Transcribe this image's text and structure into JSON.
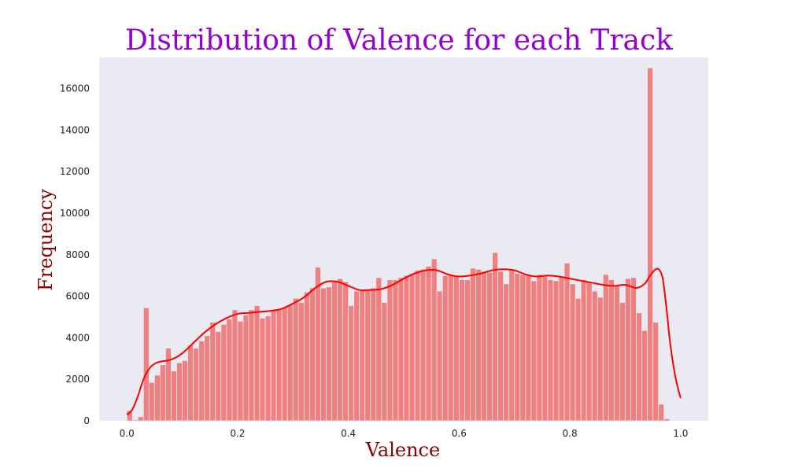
{
  "chart_data": {
    "type": "bar",
    "title": "Distribution of Valence for each Track",
    "xlabel": "Valence",
    "ylabel": "Frequency",
    "xlim": [
      -0.05,
      1.05
    ],
    "ylim": [
      0,
      17500
    ],
    "x_ticks": [
      "0.0",
      "0.2",
      "0.4",
      "0.6",
      "0.8",
      "1.0"
    ],
    "y_ticks": [
      "0",
      "2000",
      "4000",
      "6000",
      "8000",
      "10000",
      "12000",
      "14000",
      "16000"
    ],
    "grid": false,
    "bins": {
      "start": 0.0,
      "end": 1.0,
      "count": 100
    },
    "values": [
      500,
      50,
      200,
      5450,
      1850,
      2200,
      2700,
      3500,
      2400,
      2800,
      2900,
      3650,
      3500,
      3850,
      4100,
      4750,
      4300,
      4650,
      4900,
      5350,
      4800,
      5100,
      5350,
      5550,
      4950,
      5050,
      5300,
      5350,
      5450,
      5600,
      5900,
      5700,
      6200,
      6400,
      7400,
      6400,
      6450,
      6700,
      6850,
      6700,
      5550,
      6250,
      6300,
      6350,
      6400,
      6900,
      5700,
      6800,
      6800,
      6900,
      7000,
      7100,
      7250,
      7300,
      7450,
      7800,
      6250,
      7000,
      7050,
      7000,
      6800,
      6800,
      7350,
      7300,
      7200,
      7150,
      8100,
      7200,
      6600,
      7300,
      7100,
      7050,
      7000,
      6750,
      7050,
      7000,
      6800,
      6750,
      6950,
      7600,
      6600,
      5900,
      6800,
      6700,
      6250,
      5950,
      7050,
      6800,
      6550,
      5700,
      6850,
      6900,
      5200,
      4350,
      17000,
      4750,
      800,
      100,
      0,
      0
    ],
    "kde": {
      "x": [
        0.0,
        0.01,
        0.02,
        0.03,
        0.04,
        0.05,
        0.06,
        0.08,
        0.1,
        0.12,
        0.14,
        0.16,
        0.18,
        0.2,
        0.22,
        0.24,
        0.26,
        0.28,
        0.3,
        0.32,
        0.34,
        0.36,
        0.38,
        0.4,
        0.42,
        0.44,
        0.46,
        0.48,
        0.5,
        0.52,
        0.54,
        0.56,
        0.58,
        0.6,
        0.62,
        0.64,
        0.66,
        0.68,
        0.7,
        0.72,
        0.74,
        0.76,
        0.78,
        0.8,
        0.82,
        0.84,
        0.86,
        0.88,
        0.9,
        0.92,
        0.935,
        0.945,
        0.955,
        0.962,
        0.968,
        0.975,
        0.98,
        0.985,
        0.99,
        0.995,
        1.0
      ],
      "y": [
        300,
        550,
        1200,
        2000,
        2500,
        2750,
        2850,
        2950,
        3250,
        3750,
        4250,
        4650,
        4950,
        5150,
        5200,
        5250,
        5300,
        5400,
        5650,
        5950,
        6400,
        6700,
        6700,
        6500,
        6300,
        6300,
        6350,
        6550,
        6850,
        7100,
        7250,
        7250,
        7050,
        6950,
        7000,
        7100,
        7250,
        7300,
        7250,
        7050,
        6950,
        7000,
        6950,
        6850,
        6750,
        6650,
        6550,
        6500,
        6550,
        6400,
        6600,
        7000,
        7300,
        7250,
        6800,
        5300,
        4000,
        3000,
        2200,
        1600,
        1100
      ]
    },
    "colors": {
      "bar": "#f08080",
      "bar_opaque": "#ff0000",
      "kde": "#ff0000",
      "title": "#9400d3",
      "axis_label": "#8b0000",
      "plot_bg": "#eaeaf2"
    }
  }
}
